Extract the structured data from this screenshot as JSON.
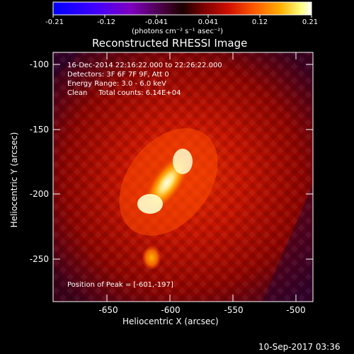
{
  "colorbar": {
    "tick_labels": [
      "-0.21",
      "-0.12",
      "-0.041",
      "0.041",
      "0.12",
      "0.21"
    ],
    "unit_label": "(photons cm⁻² s⁻¹ asec⁻²)"
  },
  "image_panel": {
    "title": "Reconstructed RHESSI Image",
    "info_lines": [
      "16-Dec-2014 22:16:22.000 to 22:26:22.000",
      "Detectors: 3F 6F 7F 9F, Att 0",
      "Energy Range: 3.0 - 6.0 keV",
      "Clean     Total counts: 6.14E+04"
    ],
    "peak_label": "Position of Peak = [-601,-197]"
  },
  "axes": {
    "xlabel": "Heliocentric X (arcsec)",
    "ylabel": "Heliocentric Y (arcsec)",
    "x_tick_labels": [
      "-650",
      "-600",
      "-550",
      "-500"
    ],
    "y_tick_labels": [
      "-100",
      "-150",
      "-200",
      "-250"
    ]
  },
  "footer": {
    "timestamp": "10-Sep-2017 03:36"
  },
  "colors": {
    "background": "#000000",
    "text": "#ffffff",
    "map_dark": "#8b0000",
    "map_mid": "#e53000",
    "map_bright": "#ffffd0"
  }
}
